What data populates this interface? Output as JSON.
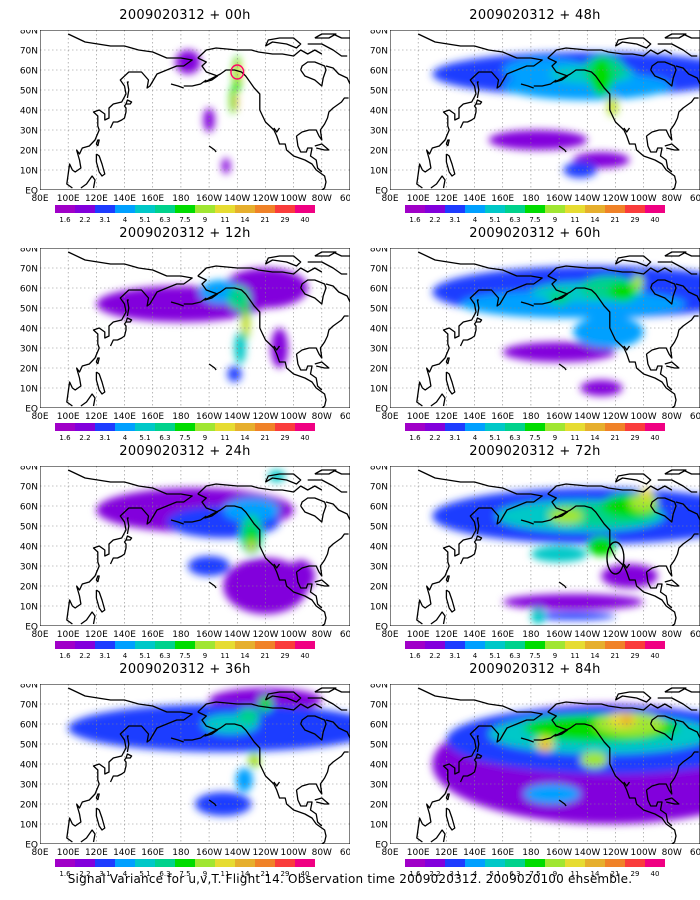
{
  "caption": "Signal Variance for u,v,T. Flight 14. Observation time 2009020312. 2009020100 ensemble.",
  "colorbar": {
    "levels": [
      "1.6",
      "2.2",
      "3.1",
      "4",
      "5.1",
      "6.3",
      "7.5",
      "9",
      "11",
      "14",
      "21",
      "29",
      "40"
    ],
    "colors": [
      "#a000c8",
      "#8200dc",
      "#1e3cff",
      "#00a0ff",
      "#00c8c8",
      "#00d28c",
      "#00dc00",
      "#a0e632",
      "#e6dc32",
      "#e6af2d",
      "#f08228",
      "#fa3c3c",
      "#f00082"
    ]
  },
  "axes": {
    "lon_labels": [
      "80E",
      "100E",
      "120E",
      "140E",
      "160E",
      "180",
      "160W",
      "140W",
      "120W",
      "100W",
      "80W",
      "60W"
    ],
    "lat_labels": [
      "EQ",
      "10N",
      "20N",
      "30N",
      "40N",
      "50N",
      "60N",
      "70N",
      "80N"
    ]
  },
  "panels": [
    {
      "title": "2009020312 + 00h",
      "blobs": [
        [
          2,
          0,
          57,
          4,
          14
        ],
        [
          2,
          0,
          56,
          3,
          12
        ],
        [
          6,
          -140,
          58,
          3,
          9
        ],
        [
          8,
          -139,
          59,
          1.6,
          5
        ],
        [
          6,
          -143,
          45,
          2,
          7
        ],
        [
          9,
          -141,
          44,
          1.2,
          4
        ],
        [
          1,
          -175,
          64,
          9,
          6
        ],
        [
          1,
          -160,
          35,
          4,
          6
        ],
        [
          1,
          -148,
          12,
          3,
          4
        ]
      ],
      "circle": [
        -140,
        59,
        4.5,
        3.5
      ]
    },
    {
      "title": "2009020312 + 48h",
      "blobs": [
        [
          2,
          -140,
          58,
          110,
          11
        ],
        [
          3,
          -140,
          52,
          60,
          7
        ],
        [
          4,
          -137,
          58,
          30,
          5
        ],
        [
          5,
          -128,
          60,
          15,
          7
        ],
        [
          6,
          -130,
          56,
          8,
          9
        ],
        [
          7,
          -122,
          42,
          4,
          5
        ],
        [
          8,
          -122,
          42,
          2,
          3
        ],
        [
          6,
          -130,
          63,
          5,
          4
        ],
        [
          3,
          -170,
          60,
          30,
          6
        ],
        [
          1,
          -175,
          25,
          35,
          5
        ],
        [
          2,
          -145,
          10,
          12,
          4
        ],
        [
          1,
          -130,
          15,
          20,
          4
        ]
      ]
    },
    {
      "title": "2009020312 + 12h",
      "blobs": [
        [
          1,
          -180,
          52,
          60,
          9
        ],
        [
          1,
          -120,
          60,
          30,
          10
        ],
        [
          3,
          -152,
          58,
          15,
          6
        ],
        [
          5,
          -139,
          55,
          8,
          6
        ],
        [
          6,
          -134,
          44,
          3,
          10
        ],
        [
          8,
          -134,
          42,
          1.8,
          6
        ],
        [
          4,
          -138,
          30,
          4,
          8
        ],
        [
          2,
          -142,
          17,
          5,
          4
        ],
        [
          1,
          -110,
          30,
          6,
          10
        ]
      ]
    },
    {
      "title": "2009020312 + 60h",
      "blobs": [
        [
          2,
          -135,
          58,
          115,
          13
        ],
        [
          3,
          -150,
          52,
          80,
          7
        ],
        [
          4,
          -140,
          58,
          40,
          5
        ],
        [
          5,
          -125,
          60,
          20,
          6
        ],
        [
          6,
          -115,
          58,
          10,
          5
        ],
        [
          7,
          -104,
          63,
          4,
          4
        ],
        [
          5,
          -160,
          55,
          8,
          4
        ],
        [
          3,
          -125,
          38,
          25,
          8
        ],
        [
          1,
          -160,
          28,
          40,
          5
        ],
        [
          1,
          -130,
          10,
          15,
          4
        ]
      ]
    },
    {
      "title": "2009020312 + 24h",
      "blobs": [
        [
          1,
          -170,
          58,
          70,
          11
        ],
        [
          1,
          -120,
          20,
          30,
          14
        ],
        [
          2,
          -150,
          52,
          40,
          8
        ],
        [
          3,
          -130,
          58,
          20,
          6
        ],
        [
          5,
          -130,
          46,
          8,
          10
        ],
        [
          6,
          -130,
          44,
          4,
          6
        ],
        [
          8,
          -130,
          40,
          2,
          3
        ],
        [
          4,
          -112,
          75,
          6,
          3
        ],
        [
          2,
          -160,
          30,
          15,
          5
        ],
        [
          1,
          -95,
          25,
          10,
          8
        ]
      ]
    },
    {
      "title": "2009020312 + 72h",
      "blobs": [
        [
          2,
          -135,
          55,
          115,
          14
        ],
        [
          4,
          -145,
          55,
          60,
          8
        ],
        [
          5,
          -130,
          56,
          40,
          6
        ],
        [
          6,
          -110,
          60,
          20,
          6
        ],
        [
          7,
          -100,
          62,
          10,
          5
        ],
        [
          8,
          -98,
          66,
          4,
          3
        ],
        [
          7,
          -155,
          55,
          12,
          4
        ],
        [
          6,
          -130,
          40,
          10,
          5
        ],
        [
          4,
          -160,
          36,
          20,
          4
        ],
        [
          1,
          -150,
          12,
          50,
          4
        ],
        [
          2,
          -150,
          5,
          30,
          2
        ],
        [
          4,
          -175,
          5,
          5,
          4
        ],
        [
          1,
          -110,
          25,
          20,
          6
        ]
      ],
      "circle": [
        -120,
        34,
        6,
        8
      ]
    },
    {
      "title": "2009020312 + 36h",
      "blobs": [
        [
          2,
          -150,
          58,
          110,
          12
        ],
        [
          1,
          -120,
          72,
          40,
          6
        ],
        [
          2,
          -165,
          55,
          20,
          8
        ],
        [
          4,
          -145,
          60,
          20,
          5
        ],
        [
          5,
          -132,
          64,
          8,
          4
        ],
        [
          6,
          -120,
          70,
          5,
          4
        ],
        [
          6,
          -128,
          42,
          4,
          4
        ],
        [
          8,
          -128,
          42,
          2,
          2.5
        ],
        [
          3,
          -135,
          32,
          6,
          6
        ],
        [
          2,
          -150,
          20,
          20,
          6
        ]
      ]
    },
    {
      "title": "2009020312 + 84h",
      "blobs": [
        [
          1,
          -125,
          40,
          125,
          30
        ],
        [
          2,
          -125,
          52,
          115,
          17
        ],
        [
          4,
          -130,
          55,
          80,
          10
        ],
        [
          6,
          -130,
          58,
          55,
          7
        ],
        [
          7,
          -110,
          60,
          25,
          6
        ],
        [
          8,
          -115,
          62,
          10,
          4
        ],
        [
          9,
          -112,
          62,
          4,
          3
        ],
        [
          8,
          -170,
          50,
          6,
          4
        ],
        [
          9,
          -170,
          49,
          3,
          2.5
        ],
        [
          7,
          -135,
          42,
          10,
          4
        ],
        [
          3,
          -165,
          25,
          20,
          5
        ]
      ]
    }
  ]
}
